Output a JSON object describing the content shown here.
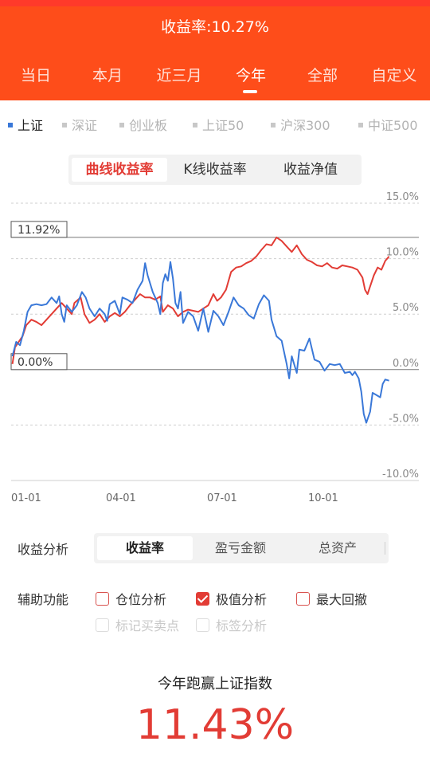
{
  "header": {
    "title": "收益率:10.27%"
  },
  "period_tabs": [
    {
      "label": "当日"
    },
    {
      "label": "本月"
    },
    {
      "label": "近三月"
    },
    {
      "label": "今年",
      "active": true
    },
    {
      "label": "全部"
    },
    {
      "label": "自定义"
    }
  ],
  "index_tabs": [
    {
      "label": "上证",
      "active": true
    },
    {
      "label": "深证"
    },
    {
      "label": "创业板"
    },
    {
      "label": "上证50"
    },
    {
      "label": "沪深300"
    },
    {
      "label": "中证500"
    }
  ],
  "chart_modes": [
    {
      "label": "曲线收益率",
      "active": true
    },
    {
      "label": "K线收益率"
    },
    {
      "label": "收益净值"
    }
  ],
  "chart_data": {
    "type": "line",
    "y_ticks": [
      "15.0%",
      "10.0%",
      "5.0%",
      "0.0%",
      "-5.0%",
      "-10.0%"
    ],
    "ylim": [
      -10,
      15
    ],
    "x_ticks": [
      "01-01",
      "04-01",
      "07-01",
      "10-01"
    ],
    "max_label": "11.92%",
    "max_value": 11.92,
    "zero_label": "0.00%",
    "colors": {
      "portfolio": "#e23c35",
      "index": "#3a78d8"
    },
    "series": [
      {
        "values": [
          [
            1,
            0.5
          ],
          [
            3,
            2
          ],
          [
            6,
            2.5
          ],
          [
            9,
            3
          ],
          [
            12,
            4
          ],
          [
            16,
            4.5
          ],
          [
            20,
            4.3
          ],
          [
            24,
            4
          ],
          [
            28,
            4.5
          ],
          [
            32,
            5
          ],
          [
            36,
            5.5
          ],
          [
            40,
            6
          ],
          [
            44,
            5.5
          ],
          [
            48,
            5
          ],
          [
            50,
            6
          ],
          [
            55,
            6.5
          ],
          [
            58,
            5
          ],
          [
            62,
            4.2
          ],
          [
            66,
            4.5
          ],
          [
            70,
            5
          ],
          [
            74,
            4.3
          ],
          [
            78,
            4.8
          ],
          [
            82,
            5.1
          ],
          [
            86,
            4.8
          ],
          [
            90,
            5.2
          ],
          [
            94,
            5.8
          ],
          [
            98,
            6.3
          ],
          [
            102,
            6.8
          ],
          [
            106,
            6.5
          ],
          [
            110,
            6.5
          ],
          [
            114,
            6.3
          ],
          [
            118,
            6.6
          ],
          [
            120,
            5.2
          ],
          [
            124,
            5.8
          ],
          [
            128,
            5.5
          ],
          [
            132,
            4.8
          ],
          [
            136,
            5.2
          ],
          [
            140,
            5.4
          ],
          [
            144,
            5.3
          ],
          [
            148,
            5.2
          ],
          [
            152,
            5.5
          ],
          [
            156,
            5.8
          ],
          [
            160,
            6.8
          ],
          [
            163,
            6.2
          ],
          [
            166,
            6.5
          ],
          [
            170,
            7.2
          ],
          [
            174,
            8.8
          ],
          [
            178,
            9.2
          ],
          [
            182,
            9.3
          ],
          [
            186,
            9.6
          ],
          [
            190,
            9.8
          ],
          [
            194,
            10.2
          ],
          [
            198,
            10.8
          ],
          [
            202,
            11.3
          ],
          [
            206,
            11.2
          ],
          [
            210,
            11.92
          ],
          [
            214,
            11.6
          ],
          [
            218,
            11.1
          ],
          [
            222,
            10.6
          ],
          [
            226,
            11.2
          ],
          [
            230,
            10.4
          ],
          [
            234,
            9.9
          ],
          [
            238,
            9.7
          ],
          [
            242,
            9.4
          ],
          [
            246,
            9.3
          ],
          [
            250,
            9.6
          ],
          [
            254,
            9.2
          ],
          [
            258,
            9.1
          ],
          [
            262,
            9.4
          ],
          [
            266,
            9.3
          ],
          [
            270,
            9.2
          ],
          [
            274,
            9.0
          ],
          [
            278,
            8.3
          ],
          [
            280,
            7.2
          ],
          [
            282,
            6.8
          ],
          [
            284,
            7.5
          ],
          [
            287,
            8.5
          ],
          [
            290,
            9.2
          ],
          [
            293,
            9.0
          ],
          [
            296,
            9.8
          ],
          [
            299,
            10.2
          ]
        ]
      },
      {
        "values": [
          [
            1,
            1.2
          ],
          [
            4,
            2.5
          ],
          [
            7,
            2.2
          ],
          [
            10,
            3.5
          ],
          [
            13,
            5.2
          ],
          [
            16,
            5.8
          ],
          [
            20,
            5.9
          ],
          [
            24,
            5.8
          ],
          [
            28,
            5.9
          ],
          [
            30,
            6.2
          ],
          [
            32,
            6.5
          ],
          [
            36,
            6.0
          ],
          [
            38,
            6.6
          ],
          [
            40,
            5.0
          ],
          [
            42,
            4.3
          ],
          [
            44,
            5.8
          ],
          [
            48,
            5.2
          ],
          [
            52,
            5.8
          ],
          [
            56,
            7.0
          ],
          [
            59,
            6.5
          ],
          [
            62,
            5.5
          ],
          [
            66,
            4.8
          ],
          [
            70,
            5.5
          ],
          [
            74,
            5.0
          ],
          [
            76,
            4.4
          ],
          [
            78,
            5.9
          ],
          [
            82,
            6.2
          ],
          [
            86,
            5.0
          ],
          [
            88,
            6.5
          ],
          [
            92,
            6.3
          ],
          [
            96,
            6.0
          ],
          [
            100,
            7.2
          ],
          [
            104,
            8.0
          ],
          [
            106,
            9.6
          ],
          [
            108,
            8.5
          ],
          [
            112,
            7.0
          ],
          [
            116,
            6.0
          ],
          [
            118,
            5.0
          ],
          [
            120,
            7.8
          ],
          [
            122,
            8.6
          ],
          [
            124,
            8.0
          ],
          [
            126,
            9.7
          ],
          [
            128,
            8.2
          ],
          [
            130,
            6.0
          ],
          [
            132,
            5.5
          ],
          [
            134,
            7.0
          ],
          [
            136,
            4.2
          ],
          [
            140,
            5.2
          ],
          [
            144,
            4.8
          ],
          [
            148,
            3.5
          ],
          [
            152,
            5.5
          ],
          [
            156,
            3.4
          ],
          [
            160,
            5.3
          ],
          [
            164,
            4.8
          ],
          [
            168,
            4.0
          ],
          [
            172,
            5.2
          ],
          [
            176,
            6.5
          ],
          [
            180,
            5.8
          ],
          [
            184,
            5.5
          ],
          [
            188,
            4.9
          ],
          [
            192,
            4.6
          ],
          [
            196,
            5.9
          ],
          [
            200,
            6.7
          ],
          [
            204,
            6.2
          ],
          [
            206,
            4.5
          ],
          [
            210,
            3.0
          ],
          [
            214,
            2.6
          ],
          [
            218,
            0.5
          ],
          [
            220,
            -0.8
          ],
          [
            222,
            1.2
          ],
          [
            226,
            -0.3
          ],
          [
            228,
            1.8
          ],
          [
            232,
            1.7
          ],
          [
            236,
            2.8
          ],
          [
            240,
            0.9
          ],
          [
            244,
            0.7
          ],
          [
            248,
            -0.1
          ],
          [
            252,
            0.5
          ],
          [
            256,
            0.4
          ],
          [
            260,
            0.5
          ],
          [
            264,
            -0.3
          ],
          [
            268,
            -0.2
          ],
          [
            270,
            -0.5
          ],
          [
            272,
            -0.2
          ],
          [
            275,
            -0.8
          ],
          [
            277,
            -2.0
          ],
          [
            279,
            -4.0
          ],
          [
            281,
            -4.8
          ],
          [
            284,
            -3.8
          ],
          [
            286,
            -2.1
          ],
          [
            289,
            -2.3
          ],
          [
            292,
            -2.5
          ],
          [
            294,
            -1.3
          ],
          [
            296,
            -0.9
          ],
          [
            299,
            -1.0
          ]
        ]
      }
    ]
  },
  "analysis": {
    "label": "收益分析",
    "options": [
      {
        "label": "收益率",
        "active": true
      },
      {
        "label": "盈亏金额"
      },
      {
        "label": "总资产"
      }
    ]
  },
  "aux": {
    "label": "辅助功能",
    "options": [
      {
        "label": "仓位分析",
        "checked": false,
        "disabled": false
      },
      {
        "label": "极值分析",
        "checked": true,
        "disabled": false
      },
      {
        "label": "最大回撤",
        "checked": false,
        "disabled": false
      },
      {
        "label": "标记买卖点",
        "checked": false,
        "disabled": true
      },
      {
        "label": "标签分析",
        "checked": false,
        "disabled": true
      }
    ]
  },
  "summary": {
    "text": "今年跑赢上证指数",
    "value": "11.43%"
  }
}
